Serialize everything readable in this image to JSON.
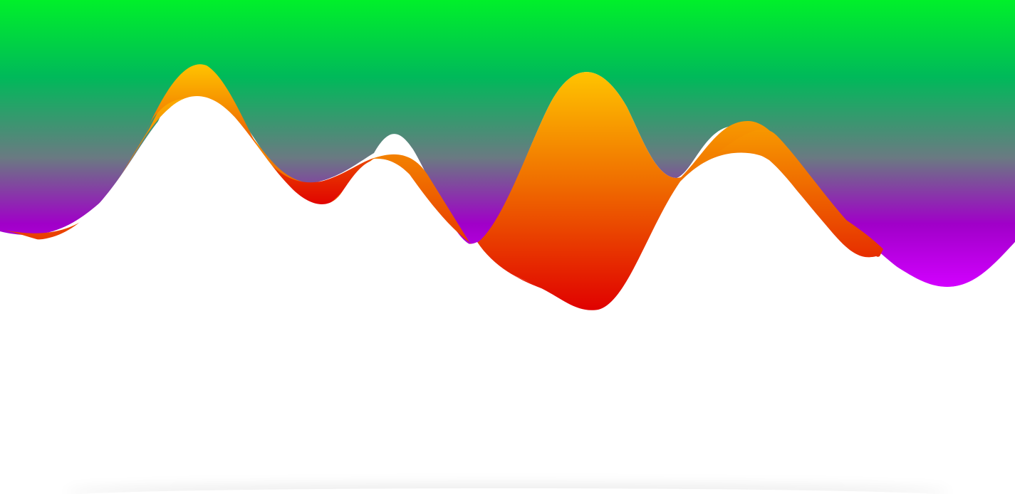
{
  "colors": {
    "green_top": "#00f02a",
    "green_mid": "#00b95a",
    "slate_mid": "#6a7a82",
    "purple_mid": "#a000c8",
    "magenta_low": "#d200ff",
    "orange_top": "#ffc400",
    "orange_mid": "#f07000",
    "red_low": "#e00000",
    "page_background": "#ffffff"
  },
  "layers": [
    {
      "name": "green-purple-gradient-layer"
    },
    {
      "name": "orange-red-wave-layer"
    },
    {
      "name": "white-foreground-wave-layer"
    }
  ]
}
